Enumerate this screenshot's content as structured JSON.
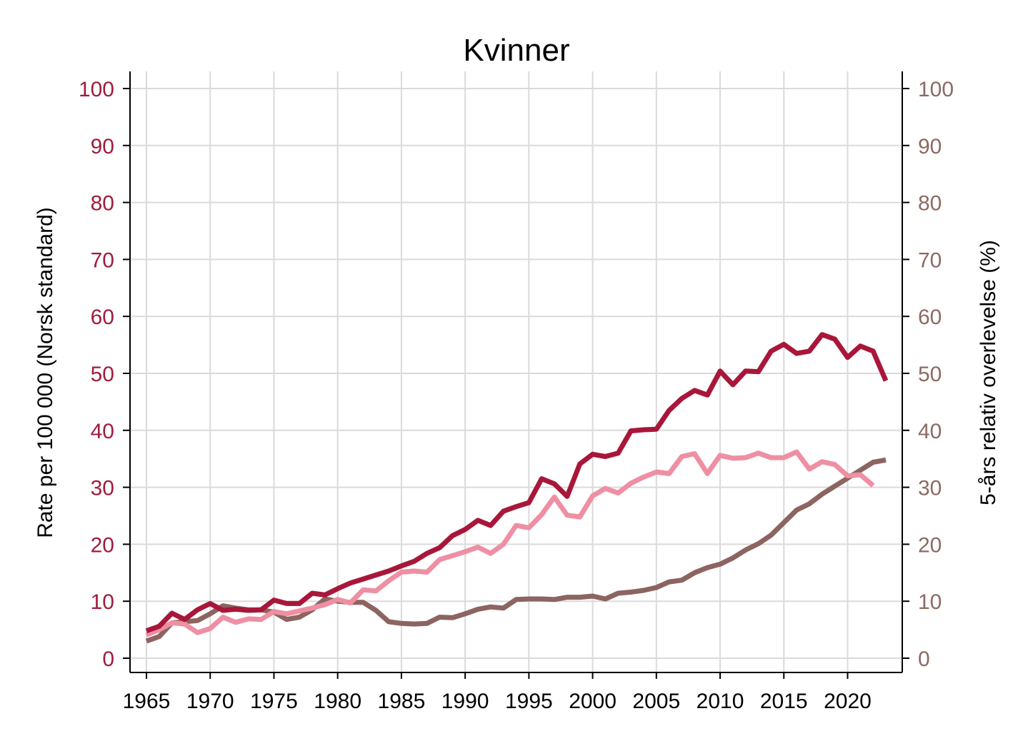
{
  "chart_data": {
    "type": "line",
    "title": "Kvinner",
    "ylabel_left": "Rate per 100 000 (Norsk standard)",
    "ylabel_right": "5-års relativ overlevelse (%)",
    "xlim": [
      1965,
      2023
    ],
    "ylim": [
      0,
      100
    ],
    "xticks": [
      "1965",
      "1970",
      "1975",
      "1980",
      "1985",
      "1990",
      "1995",
      "2000",
      "2005",
      "2010",
      "2015",
      "2020"
    ],
    "yticks": [
      "0",
      "10",
      "20",
      "30",
      "40",
      "50",
      "60",
      "70",
      "80",
      "90",
      "100"
    ],
    "grid": true,
    "colors": {
      "left_axis": "#a01c3c",
      "right_axis": "#8c6a62",
      "incidence": "#a8173a",
      "mortality": "#ee8fa3",
      "survival": "#8c6460"
    },
    "series": [
      {
        "key": "incidence",
        "axis": "left",
        "x": [
          1965,
          1966,
          1967,
          1968,
          1969,
          1970,
          1971,
          1972,
          1973,
          1974,
          1975,
          1976,
          1977,
          1978,
          1979,
          1980,
          1981,
          1982,
          1983,
          1984,
          1985,
          1986,
          1987,
          1988,
          1989,
          1990,
          1991,
          1992,
          1993,
          1994,
          1995,
          1996,
          1997,
          1998,
          1999,
          2000,
          2001,
          2002,
          2003,
          2004,
          2005,
          2006,
          2007,
          2008,
          2009,
          2010,
          2011,
          2012,
          2013,
          2014,
          2015,
          2016,
          2017,
          2018,
          2019,
          2020,
          2021,
          2022,
          2023
        ],
        "values": [
          4.8,
          5.6,
          7.9,
          6.8,
          8.5,
          9.6,
          8.4,
          8.6,
          8.4,
          8.5,
          10.2,
          9.6,
          9.6,
          11.4,
          11.1,
          12.2,
          13.2,
          13.9,
          14.6,
          15.3,
          16.2,
          17.0,
          18.4,
          19.4,
          21.5,
          22.6,
          24.2,
          23.3,
          25.8,
          26.6,
          27.3,
          31.5,
          30.6,
          28.4,
          34.1,
          35.8,
          35.4,
          36.0,
          39.9,
          40.1,
          40.2,
          43.5,
          45.6,
          47.0,
          46.2,
          50.4,
          48.0,
          50.4,
          50.3,
          53.9,
          55.1,
          53.5,
          53.9,
          56.8,
          56.0,
          52.8,
          54.8,
          53.9,
          48.7
        ]
      },
      {
        "key": "mortality",
        "axis": "left",
        "x": [
          1965,
          1966,
          1967,
          1968,
          1969,
          1970,
          1971,
          1972,
          1973,
          1974,
          1975,
          1976,
          1977,
          1978,
          1979,
          1980,
          1981,
          1982,
          1983,
          1984,
          1985,
          1986,
          1987,
          1988,
          1989,
          1990,
          1991,
          1992,
          1993,
          1994,
          1995,
          1996,
          1997,
          1998,
          1999,
          2000,
          2001,
          2002,
          2003,
          2004,
          2005,
          2006,
          2007,
          2008,
          2009,
          2010,
          2011,
          2012,
          2013,
          2014,
          2015,
          2016,
          2017,
          2018,
          2019,
          2020,
          2021,
          2022
        ],
        "values": [
          4.1,
          5.0,
          6.2,
          6.0,
          4.5,
          5.2,
          7.2,
          6.3,
          6.9,
          6.8,
          8.2,
          7.8,
          8.3,
          8.8,
          9.4,
          10.3,
          9.7,
          12.0,
          11.8,
          13.6,
          15.1,
          15.3,
          15.1,
          17.3,
          18.0,
          18.7,
          19.5,
          18.4,
          20.0,
          23.3,
          22.9,
          25.2,
          28.3,
          25.1,
          24.8,
          28.5,
          29.8,
          29.0,
          30.7,
          31.8,
          32.7,
          32.4,
          35.4,
          35.9,
          32.4,
          35.6,
          35.1,
          35.2,
          36.0,
          35.2,
          35.2,
          36.2,
          33.2,
          34.5,
          34.0,
          32.0,
          32.2,
          30.3
        ]
      },
      {
        "key": "survival",
        "axis": "right",
        "x": [
          1965,
          1966,
          1967,
          1968,
          1969,
          1970,
          1971,
          1972,
          1973,
          1974,
          1975,
          1976,
          1977,
          1978,
          1979,
          1980,
          1981,
          1982,
          1983,
          1984,
          1985,
          1986,
          1987,
          1988,
          1989,
          1990,
          1991,
          1992,
          1993,
          1994,
          1995,
          1996,
          1997,
          1998,
          1999,
          2000,
          2001,
          2002,
          2003,
          2004,
          2005,
          2006,
          2007,
          2008,
          2009,
          2010,
          2011,
          2012,
          2013,
          2014,
          2015,
          2016,
          2017,
          2018,
          2019,
          2020,
          2021,
          2022,
          2023
        ],
        "values": [
          3.0,
          3.8,
          6.2,
          6.4,
          6.6,
          7.8,
          9.2,
          8.8,
          8.5,
          8.5,
          8.1,
          6.8,
          7.2,
          8.5,
          10.4,
          10.0,
          9.8,
          9.8,
          8.4,
          6.4,
          6.1,
          6.0,
          6.1,
          7.2,
          7.1,
          7.8,
          8.6,
          9.0,
          8.8,
          10.3,
          10.4,
          10.4,
          10.3,
          10.7,
          10.7,
          10.9,
          10.4,
          11.4,
          11.6,
          11.9,
          12.4,
          13.4,
          13.7,
          15.0,
          15.9,
          16.5,
          17.6,
          19.0,
          20.1,
          21.6,
          23.8,
          26.0,
          27.1,
          28.8,
          30.2,
          31.6,
          33.0,
          34.4,
          34.8
        ]
      }
    ]
  }
}
